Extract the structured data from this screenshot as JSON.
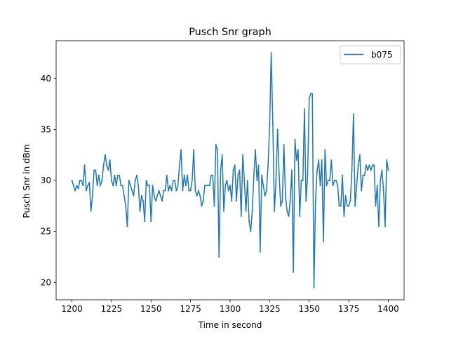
{
  "chart_data": {
    "type": "line",
    "title": "Pusch Snr graph",
    "xlabel": "Time in second",
    "ylabel": "Pusch Snr in dBm",
    "xlim": [
      1190,
      1410
    ],
    "ylim": [
      18.3,
      43.7
    ],
    "xticks": [
      1200,
      1225,
      1250,
      1275,
      1300,
      1325,
      1350,
      1375,
      1400
    ],
    "yticks": [
      20,
      25,
      30,
      35,
      40
    ],
    "grid": false,
    "legend_position": "top-right",
    "colors": {
      "series": "#1f77b4"
    },
    "series": [
      {
        "name": "b075",
        "points": [
          [
            1200,
            30.0
          ],
          [
            1201,
            29.5
          ],
          [
            1202,
            29.0
          ],
          [
            1203,
            29.5
          ],
          [
            1204,
            29.2
          ],
          [
            1205,
            30.0
          ],
          [
            1206,
            30.0
          ],
          [
            1207,
            29.5
          ],
          [
            1208,
            31.5
          ],
          [
            1209,
            29.0
          ],
          [
            1210,
            29.5
          ],
          [
            1211,
            29.8
          ],
          [
            1212,
            27.0
          ],
          [
            1213,
            28.5
          ],
          [
            1214,
            31.0
          ],
          [
            1215,
            31.0
          ],
          [
            1216,
            29.5
          ],
          [
            1217,
            30.5
          ],
          [
            1218,
            29.5
          ],
          [
            1219,
            30.0
          ],
          [
            1220,
            31.5
          ],
          [
            1221,
            32.5
          ],
          [
            1222,
            31.5
          ],
          [
            1223,
            31.0
          ],
          [
            1224,
            32.0
          ],
          [
            1225,
            30.0
          ],
          [
            1226,
            29.5
          ],
          [
            1227,
            30.5
          ],
          [
            1228,
            29.5
          ],
          [
            1229,
            30.5
          ],
          [
            1230,
            30.5
          ],
          [
            1231,
            29.5
          ],
          [
            1232,
            29.5
          ],
          [
            1233,
            28.5
          ],
          [
            1234,
            27.5
          ],
          [
            1235,
            25.5
          ],
          [
            1236,
            30.0
          ],
          [
            1237,
            29.5
          ],
          [
            1238,
            29.0
          ],
          [
            1239,
            28.5
          ],
          [
            1240,
            30.0
          ],
          [
            1241,
            30.5
          ],
          [
            1242,
            29.5
          ],
          [
            1243,
            27.0
          ],
          [
            1244,
            28.5
          ],
          [
            1245,
            28.0
          ],
          [
            1246,
            26.0
          ],
          [
            1247,
            30.0
          ],
          [
            1248,
            29.5
          ],
          [
            1249,
            29.5
          ],
          [
            1250,
            26.0
          ],
          [
            1251,
            29.5
          ],
          [
            1252,
            28.5
          ],
          [
            1253,
            28.0
          ],
          [
            1254,
            28.5
          ],
          [
            1255,
            29.0
          ],
          [
            1256,
            28.5
          ],
          [
            1257,
            28.0
          ],
          [
            1258,
            29.0
          ],
          [
            1259,
            29.0
          ],
          [
            1260,
            30.5
          ],
          [
            1261,
            29.0
          ],
          [
            1262,
            29.5
          ],
          [
            1263,
            29.0
          ],
          [
            1264,
            30.0
          ],
          [
            1265,
            30.0
          ],
          [
            1266,
            29.0
          ],
          [
            1267,
            29.5
          ],
          [
            1268,
            31.5
          ],
          [
            1269,
            33.0
          ],
          [
            1270,
            29.0
          ],
          [
            1271,
            30.5
          ],
          [
            1272,
            29.5
          ],
          [
            1273,
            30.5
          ],
          [
            1274,
            29.0
          ],
          [
            1275,
            29.0
          ],
          [
            1276,
            30.0
          ],
          [
            1277,
            33.0
          ],
          [
            1278,
            29.0
          ],
          [
            1279,
            28.5
          ],
          [
            1280,
            29.0
          ],
          [
            1281,
            28.5
          ],
          [
            1282,
            27.5
          ],
          [
            1283,
            28.0
          ],
          [
            1284,
            29.5
          ],
          [
            1285,
            29.5
          ],
          [
            1286,
            29.5
          ],
          [
            1287,
            29.5
          ],
          [
            1288,
            30.5
          ],
          [
            1289,
            30.5
          ],
          [
            1290,
            27.5
          ],
          [
            1291,
            33.5
          ],
          [
            1292,
            33.0
          ],
          [
            1293,
            22.5
          ],
          [
            1294,
            31.0
          ],
          [
            1295,
            32.5
          ],
          [
            1296,
            27.0
          ],
          [
            1297,
            29.5
          ],
          [
            1298,
            30.0
          ],
          [
            1299,
            29.0
          ],
          [
            1300,
            29.5
          ],
          [
            1301,
            28.0
          ],
          [
            1302,
            31.0
          ],
          [
            1303,
            31.5
          ],
          [
            1304,
            28.0
          ],
          [
            1305,
            30.5
          ],
          [
            1306,
            31.0
          ],
          [
            1307,
            26.5
          ],
          [
            1308,
            32.5
          ],
          [
            1309,
            30.0
          ],
          [
            1310,
            27.0
          ],
          [
            1311,
            30.0
          ],
          [
            1312,
            26.0
          ],
          [
            1313,
            25.0
          ],
          [
            1314,
            27.0
          ],
          [
            1315,
            30.5
          ],
          [
            1316,
            33.0
          ],
          [
            1317,
            30.0
          ],
          [
            1318,
            31.5
          ],
          [
            1319,
            23.0
          ],
          [
            1320,
            30.5
          ],
          [
            1321,
            29.5
          ],
          [
            1322,
            28.5
          ],
          [
            1323,
            29.0
          ],
          [
            1324,
            31.5
          ],
          [
            1325,
            35.5
          ],
          [
            1326,
            42.5
          ],
          [
            1327,
            35.5
          ],
          [
            1328,
            27.0
          ],
          [
            1329,
            30.0
          ],
          [
            1330,
            35.0
          ],
          [
            1331,
            30.5
          ],
          [
            1332,
            27.5
          ],
          [
            1333,
            28.0
          ],
          [
            1334,
            33.5
          ],
          [
            1335,
            28.5
          ],
          [
            1336,
            27.0
          ],
          [
            1337,
            26.5
          ],
          [
            1338,
            28.0
          ],
          [
            1339,
            31.0
          ],
          [
            1340,
            21.0
          ],
          [
            1341,
            34.0
          ],
          [
            1342,
            32.0
          ],
          [
            1343,
            33.0
          ],
          [
            1344,
            26.5
          ],
          [
            1345,
            30.0
          ],
          [
            1346,
            30.0
          ],
          [
            1347,
            37.0
          ],
          [
            1348,
            28.0
          ],
          [
            1349,
            30.5
          ],
          [
            1350,
            38.0
          ],
          [
            1351,
            38.5
          ],
          [
            1352,
            38.5
          ],
          [
            1353,
            19.5
          ],
          [
            1354,
            28.0
          ],
          [
            1355,
            31.0
          ],
          [
            1356,
            32.0
          ],
          [
            1357,
            29.5
          ],
          [
            1358,
            32.0
          ],
          [
            1359,
            24.0
          ],
          [
            1360,
            33.0
          ],
          [
            1361,
            29.5
          ],
          [
            1362,
            30.0
          ],
          [
            1363,
            30.0
          ],
          [
            1364,
            32.0
          ],
          [
            1365,
            29.5
          ],
          [
            1366,
            30.0
          ],
          [
            1367,
            30.0
          ],
          [
            1368,
            29.5
          ],
          [
            1369,
            27.5
          ],
          [
            1370,
            27.5
          ],
          [
            1371,
            30.5
          ],
          [
            1372,
            26.5
          ],
          [
            1373,
            28.5
          ],
          [
            1374,
            27.5
          ],
          [
            1375,
            27.5
          ],
          [
            1376,
            28.0
          ],
          [
            1377,
            31.0
          ],
          [
            1378,
            36.5
          ],
          [
            1379,
            27.5
          ],
          [
            1380,
            29.5
          ],
          [
            1381,
            31.5
          ],
          [
            1382,
            32.5
          ],
          [
            1383,
            29.0
          ],
          [
            1384,
            30.5
          ],
          [
            1385,
            30.5
          ],
          [
            1386,
            31.5
          ],
          [
            1387,
            31.0
          ],
          [
            1388,
            31.5
          ],
          [
            1389,
            31.0
          ],
          [
            1390,
            31.5
          ],
          [
            1391,
            31.5
          ],
          [
            1392,
            27.5
          ],
          [
            1393,
            29.5
          ],
          [
            1394,
            25.5
          ],
          [
            1395,
            30.0
          ],
          [
            1396,
            31.0
          ],
          [
            1397,
            29.0
          ],
          [
            1398,
            25.5
          ],
          [
            1399,
            32.0
          ],
          [
            1400,
            31.0
          ]
        ]
      }
    ]
  }
}
